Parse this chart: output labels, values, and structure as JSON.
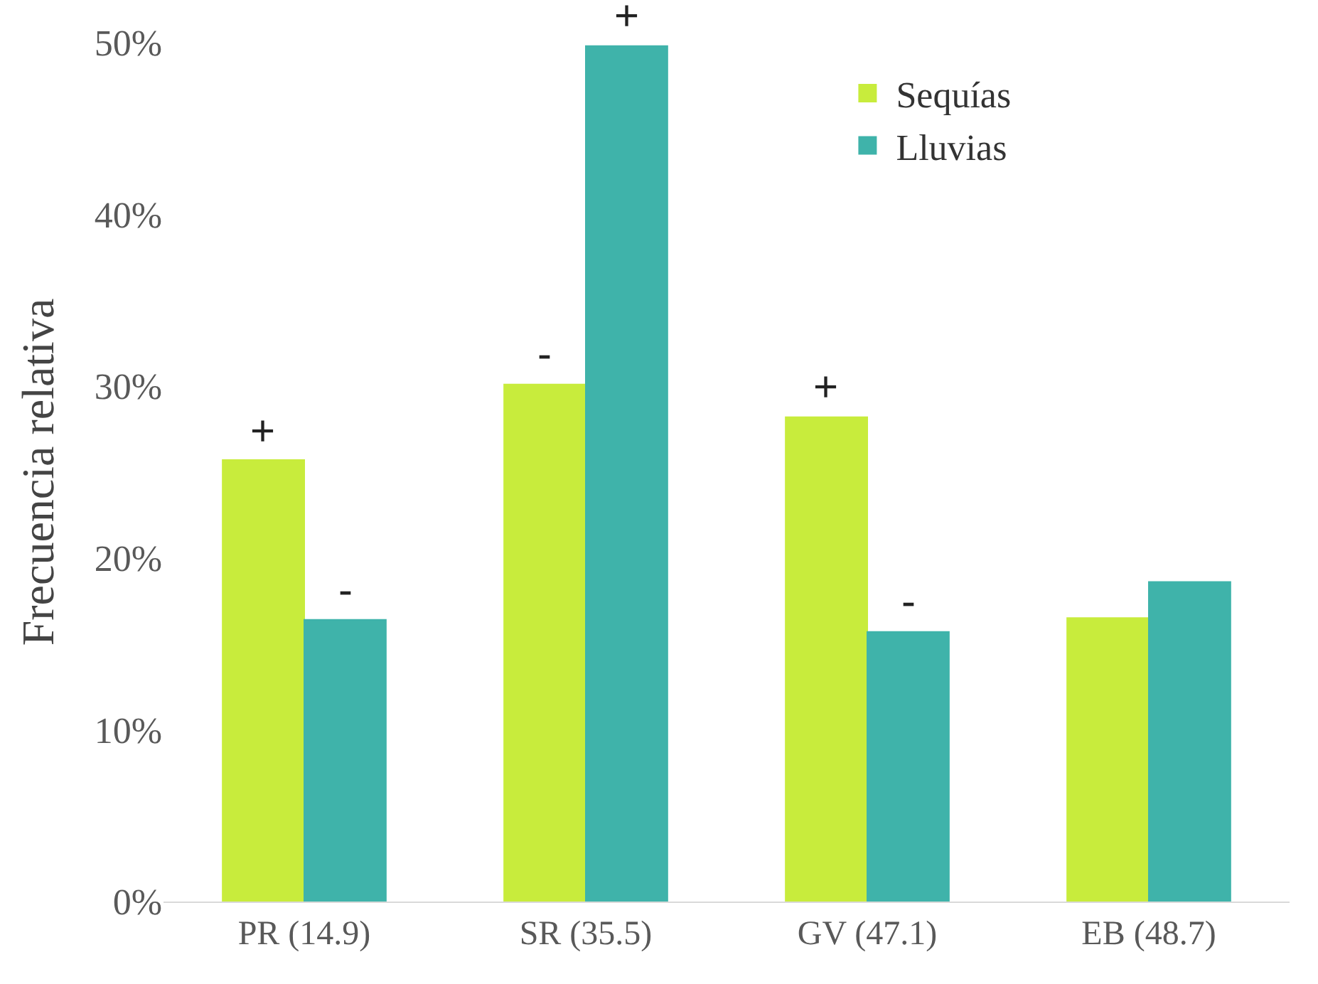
{
  "chart_data": {
    "type": "bar",
    "ylabel": "Frecuencia relativa",
    "categories": [
      "PR (14.9)",
      "SR (35.5)",
      "GV (47.1)",
      "EB (48.7)"
    ],
    "series": [
      {
        "name": "Sequías",
        "color": "#c8ec3c",
        "values": [
          25.7,
          30.1,
          28.2,
          16.5
        ]
      },
      {
        "name": "Lluvias",
        "color": "#3fb3aa",
        "values": [
          16.4,
          49.8,
          15.7,
          18.6
        ]
      }
    ],
    "ylim": [
      0,
      50
    ],
    "yticks": [
      {
        "value": 0,
        "label": "0%"
      },
      {
        "value": 10,
        "label": "10%"
      },
      {
        "value": 20,
        "label": "20%"
      },
      {
        "value": 30,
        "label": "30%"
      },
      {
        "value": 40,
        "label": "40%"
      },
      {
        "value": 50,
        "label": "50%"
      }
    ],
    "grid": false,
    "legend": "top right",
    "annotations": [
      {
        "text": "+",
        "x": "PR (14.9)",
        "y": 25.7
      },
      {
        "text": "-",
        "x": "PR (14.9)",
        "y": 16.4
      },
      {
        "text": "-",
        "x": "SR (35.5)",
        "y": 30.1
      },
      {
        "text": "+",
        "x": "SR (35.5)",
        "y": 49.8
      },
      {
        "text": "+",
        "x": "GV (47.1)",
        "y": 28.2
      },
      {
        "text": "-",
        "x": "GV (47.1)",
        "y": 15.7
      }
    ]
  }
}
